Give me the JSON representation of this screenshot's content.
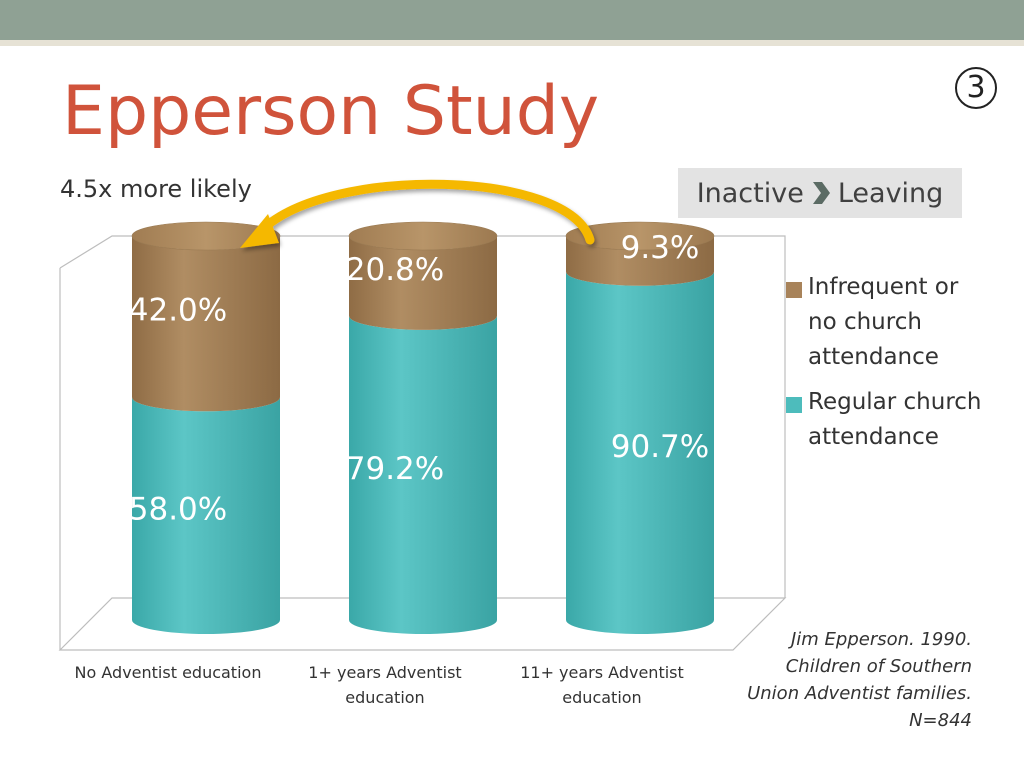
{
  "slide": {
    "title": "Epperson Study",
    "slide_number": "3",
    "subtitle": "4.5x more likely",
    "tag": {
      "left": "Inactive",
      "right": "Leaving",
      "separator_icon": "chevron-right-icon"
    },
    "citation": [
      "Jim Epperson. 1990.",
      "Children of Southern",
      "Union Adventist families.",
      "N=844"
    ]
  },
  "colors": {
    "title": "#d0533b",
    "teal": "#4dbcbc",
    "tan": "#a8835a",
    "arrow": "#f5b800",
    "topbar": "#8fa194"
  },
  "chart_data": {
    "type": "bar",
    "stacked": true,
    "three_d": "cylinder",
    "categories": [
      "No Adventist education",
      "1+ years Adventist education",
      "11+ years Adventist education"
    ],
    "categories_wrapped": [
      [
        "No Adventist education"
      ],
      [
        "1+ years Adventist",
        "education"
      ],
      [
        "11+ years Adventist",
        "education"
      ]
    ],
    "series": [
      {
        "name": "Regular church attendance",
        "color": "#4dbcbc",
        "values": [
          58.0,
          79.2,
          90.7
        ],
        "labels": [
          "58.0%",
          "79.2%",
          "90.7%"
        ]
      },
      {
        "name": "Infrequent or no church attendance",
        "color": "#a8835a",
        "values": [
          42.0,
          20.8,
          9.3
        ],
        "labels": [
          "42.0%",
          "20.8%",
          "9.3%"
        ]
      }
    ],
    "legend_order": [
      1,
      0
    ],
    "ylim": [
      0,
      100
    ],
    "legend_position": "right",
    "annotation": {
      "type": "arrow",
      "from_category": 2,
      "to_category": 0
    }
  }
}
